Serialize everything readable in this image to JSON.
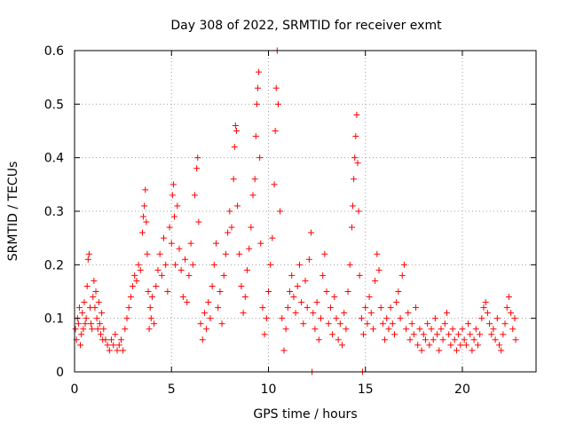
{
  "chart_data": {
    "type": "scatter",
    "title": "Day 308 of 2022, SRMTID for receiver exmt",
    "xlabel": "GPS time / hours",
    "ylabel": "SRMTID / TECUs",
    "xlim": [
      0,
      23.8
    ],
    "ylim": [
      0,
      0.6
    ],
    "xticks": [
      0,
      5,
      10,
      15,
      20
    ],
    "yticks": [
      0,
      0.1,
      0.2,
      0.3,
      0.4,
      0.5,
      0.6
    ],
    "xtick_labels": [
      "0",
      "5",
      "10",
      "15",
      "20"
    ],
    "ytick_labels": [
      "0",
      "0.1",
      "0.2",
      "0.3",
      "0.4",
      "0.5",
      "0.6"
    ],
    "grid": true,
    "marker": "plus",
    "color": "#ff0000",
    "series": [
      {
        "name": "SRMTID",
        "points": [
          [
            0.05,
            0.08
          ],
          [
            0.1,
            0.06
          ],
          [
            0.15,
            0.1
          ],
          [
            0.2,
            0.09
          ],
          [
            0.25,
            0.12
          ],
          [
            0.3,
            0.05
          ],
          [
            0.35,
            0.07
          ],
          [
            0.4,
            0.11
          ],
          [
            0.45,
            0.08
          ],
          [
            0.5,
            0.13
          ],
          [
            0.55,
            0.09
          ],
          [
            0.6,
            0.1
          ],
          [
            0.65,
            0.16
          ],
          [
            0.7,
            0.21
          ],
          [
            0.75,
            0.22
          ],
          [
            0.8,
            0.12
          ],
          [
            0.85,
            0.09
          ],
          [
            0.9,
            0.08
          ],
          [
            0.95,
            0.14
          ],
          [
            1.0,
            0.17
          ],
          [
            1.05,
            0.12
          ],
          [
            1.1,
            0.15
          ],
          [
            1.15,
            0.1
          ],
          [
            1.2,
            0.08
          ],
          [
            1.25,
            0.13
          ],
          [
            1.3,
            0.09
          ],
          [
            1.35,
            0.07
          ],
          [
            1.4,
            0.11
          ],
          [
            1.45,
            0.06
          ],
          [
            1.5,
            0.08
          ],
          [
            1.6,
            0.06
          ],
          [
            1.7,
            0.05
          ],
          [
            1.8,
            0.04
          ],
          [
            1.9,
            0.06
          ],
          [
            2.0,
            0.05
          ],
          [
            2.1,
            0.07
          ],
          [
            2.2,
            0.04
          ],
          [
            2.3,
            0.05
          ],
          [
            2.4,
            0.06
          ],
          [
            2.5,
            0.04
          ],
          [
            2.6,
            0.08
          ],
          [
            2.7,
            0.1
          ],
          [
            2.8,
            0.12
          ],
          [
            2.9,
            0.14
          ],
          [
            3.0,
            0.16
          ],
          [
            3.1,
            0.18
          ],
          [
            3.2,
            0.17
          ],
          [
            3.3,
            0.2
          ],
          [
            3.4,
            0.19
          ],
          [
            3.5,
            0.26
          ],
          [
            3.55,
            0.29
          ],
          [
            3.6,
            0.31
          ],
          [
            3.65,
            0.34
          ],
          [
            3.7,
            0.28
          ],
          [
            3.75,
            0.22
          ],
          [
            3.8,
            0.15
          ],
          [
            3.85,
            0.08
          ],
          [
            3.9,
            0.12
          ],
          [
            3.95,
            0.1
          ],
          [
            4.0,
            0.14
          ],
          [
            4.1,
            0.09
          ],
          [
            4.2,
            0.16
          ],
          [
            4.3,
            0.19
          ],
          [
            4.4,
            0.22
          ],
          [
            4.5,
            0.18
          ],
          [
            4.6,
            0.25
          ],
          [
            4.7,
            0.2
          ],
          [
            4.8,
            0.15
          ],
          [
            4.9,
            0.27
          ],
          [
            5.0,
            0.24
          ],
          [
            5.05,
            0.33
          ],
          [
            5.1,
            0.35
          ],
          [
            5.15,
            0.29
          ],
          [
            5.2,
            0.2
          ],
          [
            5.3,
            0.31
          ],
          [
            5.4,
            0.23
          ],
          [
            5.5,
            0.19
          ],
          [
            5.6,
            0.14
          ],
          [
            5.7,
            0.21
          ],
          [
            5.8,
            0.13
          ],
          [
            5.9,
            0.18
          ],
          [
            6.0,
            0.24
          ],
          [
            6.1,
            0.2
          ],
          [
            6.2,
            0.33
          ],
          [
            6.3,
            0.38
          ],
          [
            6.35,
            0.4
          ],
          [
            6.4,
            0.28
          ],
          [
            6.5,
            0.09
          ],
          [
            6.6,
            0.06
          ],
          [
            6.7,
            0.11
          ],
          [
            6.8,
            0.08
          ],
          [
            6.9,
            0.13
          ],
          [
            7.0,
            0.1
          ],
          [
            7.1,
            0.16
          ],
          [
            7.2,
            0.2
          ],
          [
            7.3,
            0.24
          ],
          [
            7.4,
            0.12
          ],
          [
            7.5,
            0.15
          ],
          [
            7.6,
            0.09
          ],
          [
            7.7,
            0.18
          ],
          [
            7.8,
            0.22
          ],
          [
            7.9,
            0.26
          ],
          [
            8.0,
            0.3
          ],
          [
            8.1,
            0.27
          ],
          [
            8.2,
            0.36
          ],
          [
            8.25,
            0.42
          ],
          [
            8.3,
            0.46
          ],
          [
            8.35,
            0.45
          ],
          [
            8.4,
            0.31
          ],
          [
            8.5,
            0.22
          ],
          [
            8.6,
            0.16
          ],
          [
            8.7,
            0.11
          ],
          [
            8.8,
            0.14
          ],
          [
            8.9,
            0.19
          ],
          [
            9.0,
            0.23
          ],
          [
            9.1,
            0.27
          ],
          [
            9.2,
            0.33
          ],
          [
            9.3,
            0.36
          ],
          [
            9.35,
            0.44
          ],
          [
            9.4,
            0.5
          ],
          [
            9.45,
            0.53
          ],
          [
            9.5,
            0.56
          ],
          [
            9.55,
            0.4
          ],
          [
            9.6,
            0.24
          ],
          [
            9.7,
            0.12
          ],
          [
            9.8,
            0.07
          ],
          [
            9.9,
            0.1
          ],
          [
            10.0,
            0.15
          ],
          [
            10.1,
            0.2
          ],
          [
            10.2,
            0.25
          ],
          [
            10.3,
            0.35
          ],
          [
            10.35,
            0.45
          ],
          [
            10.4,
            0.53
          ],
          [
            10.45,
            0.6
          ],
          [
            10.5,
            0.5
          ],
          [
            10.6,
            0.3
          ],
          [
            10.7,
            0.1
          ],
          [
            10.8,
            0.04
          ],
          [
            10.9,
            0.08
          ],
          [
            11.0,
            0.12
          ],
          [
            11.1,
            0.15
          ],
          [
            11.2,
            0.18
          ],
          [
            11.3,
            0.14
          ],
          [
            11.4,
            0.11
          ],
          [
            11.5,
            0.16
          ],
          [
            11.6,
            0.2
          ],
          [
            11.7,
            0.13
          ],
          [
            11.8,
            0.09
          ],
          [
            11.9,
            0.17
          ],
          [
            12.0,
            0.12
          ],
          [
            12.1,
            0.21
          ],
          [
            12.2,
            0.26
          ],
          [
            12.25,
            0.0
          ],
          [
            12.3,
            0.11
          ],
          [
            12.4,
            0.08
          ],
          [
            12.5,
            0.13
          ],
          [
            12.6,
            0.06
          ],
          [
            12.7,
            0.1
          ],
          [
            12.8,
            0.18
          ],
          [
            12.9,
            0.22
          ],
          [
            13.0,
            0.15
          ],
          [
            13.1,
            0.09
          ],
          [
            13.2,
            0.12
          ],
          [
            13.3,
            0.07
          ],
          [
            13.4,
            0.14
          ],
          [
            13.5,
            0.1
          ],
          [
            13.6,
            0.06
          ],
          [
            13.7,
            0.09
          ],
          [
            13.8,
            0.05
          ],
          [
            13.9,
            0.11
          ],
          [
            14.0,
            0.08
          ],
          [
            14.1,
            0.15
          ],
          [
            14.2,
            0.2
          ],
          [
            14.3,
            0.27
          ],
          [
            14.35,
            0.31
          ],
          [
            14.4,
            0.36
          ],
          [
            14.45,
            0.4
          ],
          [
            14.5,
            0.44
          ],
          [
            14.55,
            0.48
          ],
          [
            14.6,
            0.39
          ],
          [
            14.65,
            0.3
          ],
          [
            14.7,
            0.18
          ],
          [
            14.8,
            0.1
          ],
          [
            14.85,
            0.0
          ],
          [
            14.9,
            0.07
          ],
          [
            15.0,
            0.12
          ],
          [
            15.1,
            0.09
          ],
          [
            15.2,
            0.14
          ],
          [
            15.3,
            0.11
          ],
          [
            15.4,
            0.08
          ],
          [
            15.5,
            0.17
          ],
          [
            15.6,
            0.22
          ],
          [
            15.7,
            0.19
          ],
          [
            15.8,
            0.12
          ],
          [
            15.9,
            0.09
          ],
          [
            16.0,
            0.06
          ],
          [
            16.1,
            0.1
          ],
          [
            16.2,
            0.08
          ],
          [
            16.3,
            0.12
          ],
          [
            16.4,
            0.09
          ],
          [
            16.5,
            0.07
          ],
          [
            16.6,
            0.13
          ],
          [
            16.7,
            0.15
          ],
          [
            16.8,
            0.1
          ],
          [
            16.9,
            0.18
          ],
          [
            17.0,
            0.2
          ],
          [
            17.1,
            0.08
          ],
          [
            17.2,
            0.11
          ],
          [
            17.3,
            0.06
          ],
          [
            17.4,
            0.09
          ],
          [
            17.5,
            0.07
          ],
          [
            17.6,
            0.12
          ],
          [
            17.7,
            0.05
          ],
          [
            17.8,
            0.08
          ],
          [
            17.9,
            0.04
          ],
          [
            18.0,
            0.07
          ],
          [
            18.1,
            0.06
          ],
          [
            18.2,
            0.09
          ],
          [
            18.3,
            0.05
          ],
          [
            18.4,
            0.08
          ],
          [
            18.5,
            0.06
          ],
          [
            18.6,
            0.1
          ],
          [
            18.7,
            0.07
          ],
          [
            18.8,
            0.04
          ],
          [
            18.9,
            0.08
          ],
          [
            19.0,
            0.06
          ],
          [
            19.1,
            0.09
          ],
          [
            19.2,
            0.11
          ],
          [
            19.3,
            0.07
          ],
          [
            19.4,
            0.05
          ],
          [
            19.5,
            0.08
          ],
          [
            19.6,
            0.06
          ],
          [
            19.7,
            0.04
          ],
          [
            19.8,
            0.07
          ],
          [
            19.9,
            0.05
          ],
          [
            20.0,
            0.08
          ],
          [
            20.1,
            0.06
          ],
          [
            20.2,
            0.05
          ],
          [
            20.3,
            0.09
          ],
          [
            20.4,
            0.07
          ],
          [
            20.5,
            0.04
          ],
          [
            20.6,
            0.06
          ],
          [
            20.7,
            0.08
          ],
          [
            20.8,
            0.05
          ],
          [
            20.9,
            0.07
          ],
          [
            21.0,
            0.1
          ],
          [
            21.1,
            0.12
          ],
          [
            21.2,
            0.13
          ],
          [
            21.3,
            0.11
          ],
          [
            21.4,
            0.09
          ],
          [
            21.5,
            0.07
          ],
          [
            21.6,
            0.08
          ],
          [
            21.7,
            0.06
          ],
          [
            21.8,
            0.1
          ],
          [
            21.9,
            0.05
          ],
          [
            22.0,
            0.04
          ],
          [
            22.1,
            0.07
          ],
          [
            22.2,
            0.09
          ],
          [
            22.3,
            0.12
          ],
          [
            22.4,
            0.14
          ],
          [
            22.5,
            0.11
          ],
          [
            22.6,
            0.08
          ],
          [
            22.7,
            0.1
          ],
          [
            22.75,
            0.06
          ]
        ]
      }
    ]
  }
}
